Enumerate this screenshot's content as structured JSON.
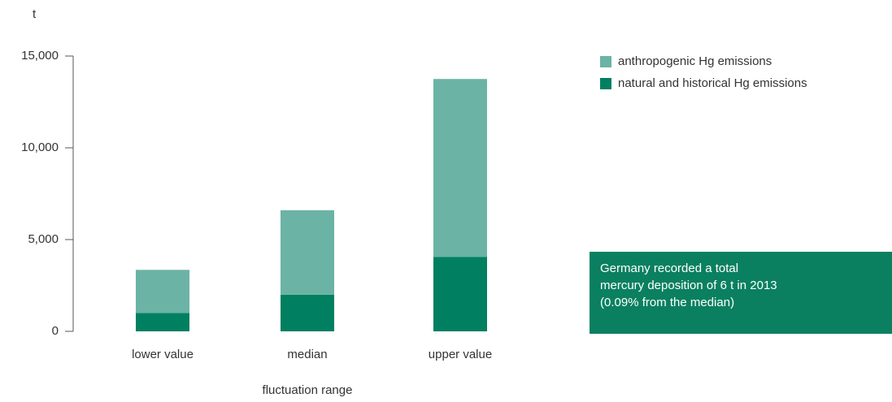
{
  "chart_data": {
    "type": "stacked_bar",
    "y_label": "t",
    "x_label": "fluctuation range",
    "categories": [
      "lower value",
      "median",
      "upper value"
    ],
    "series": [
      {
        "name": "natural and historical Hg emissions",
        "color": "#008060",
        "values": [
          1000,
          2000,
          4050
        ]
      },
      {
        "name": "anthropogenic Hg emissions",
        "color": "#6bb3a5",
        "values": [
          2350,
          4600,
          9700
        ]
      }
    ],
    "ylim": [
      0,
      15000
    ],
    "yticks": [
      0,
      {
        "value": 5000,
        "label": "5,000"
      },
      {
        "value": 10000,
        "label": "10,000"
      },
      {
        "value": 15000,
        "label": "15,000"
      }
    ],
    "annotation": [
      "Germany recorded a total",
      "mercury deposition of 6 t in 2013",
      "(0.09% from the median)"
    ],
    "annotation_color": "#0a8060"
  }
}
